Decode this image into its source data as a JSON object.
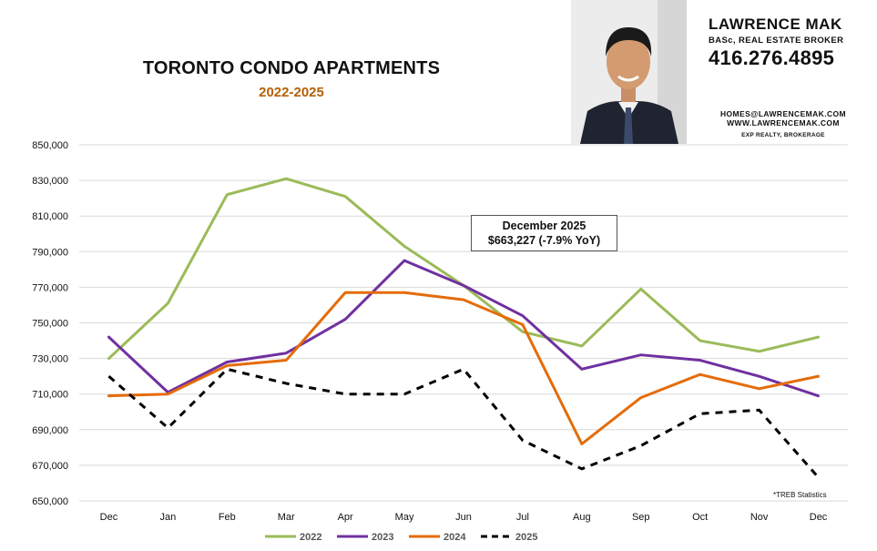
{
  "header": {
    "title": "TORONTO CONDO APARTMENTS",
    "subtitle": "2022-2025"
  },
  "agent": {
    "name": "LAWRENCE MAK",
    "title": "BASc, REAL ESTATE BROKER",
    "phone": "416.276.4895",
    "email": "HOMES@LAWRENCEMAK.COM",
    "website": "WWW.LAWRENCEMAK.COM",
    "brokerage": "EXP REALTY, BROKERAGE"
  },
  "callout": {
    "line1": "December 2025",
    "line2": "$663,227 (-7.9% YoY)"
  },
  "source_note": "*TREB Statistics",
  "colors": {
    "s2022": "#9bbb59",
    "s2023": "#7030a0",
    "s2024": "#e46c0a",
    "s2025": "#000000",
    "grid": "#d9d9d9",
    "brand": "#b45f06"
  },
  "chart_data": {
    "type": "line",
    "title": "TORONTO CONDO APARTMENTS",
    "subtitle": "2022-2025",
    "xlabel": "",
    "ylabel": "",
    "categories": [
      "Dec",
      "Jan",
      "Feb",
      "Mar",
      "Apr",
      "May",
      "Jun",
      "Jul",
      "Aug",
      "Sep",
      "Oct",
      "Nov",
      "Dec"
    ],
    "ylim": [
      650000,
      850000
    ],
    "yticks": [
      650000,
      670000,
      690000,
      710000,
      730000,
      750000,
      770000,
      790000,
      810000,
      830000,
      850000
    ],
    "ytick_labels": [
      "650,000",
      "670,000",
      "690,000",
      "710,000",
      "730,000",
      "750,000",
      "770,000",
      "790,000",
      "810,000",
      "830,000",
      "850,000"
    ],
    "grid": true,
    "legend": "bottom",
    "series": [
      {
        "name": "2022",
        "color": "#9bbb59",
        "dash": false,
        "values": [
          730000,
          761000,
          822000,
          831000,
          821000,
          793000,
          771000,
          745000,
          737000,
          769000,
          740000,
          734000,
          742000
        ]
      },
      {
        "name": "2023",
        "color": "#7030a0",
        "dash": false,
        "values": [
          742000,
          711000,
          728000,
          733000,
          752000,
          785000,
          771000,
          754000,
          724000,
          732000,
          729000,
          720000,
          709000
        ]
      },
      {
        "name": "2024",
        "color": "#e46c0a",
        "dash": false,
        "values": [
          709000,
          710000,
          726000,
          729000,
          767000,
          767000,
          763000,
          749000,
          682000,
          708000,
          721000,
          713000,
          720000
        ]
      },
      {
        "name": "2025",
        "color": "#000000",
        "dash": true,
        "values": [
          720000,
          691000,
          724000,
          716000,
          710000,
          710000,
          724000,
          684000,
          668000,
          681000,
          699000,
          701000,
          663227
        ]
      }
    ]
  }
}
